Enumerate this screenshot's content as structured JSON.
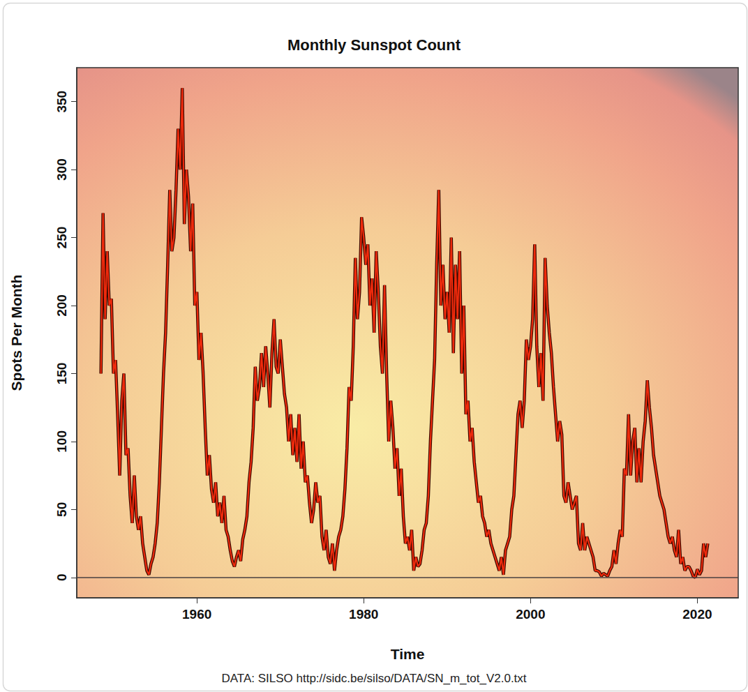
{
  "chart_data": {
    "type": "line",
    "title": "Monthly Sunspot Count",
    "x_label": "Time",
    "y_label": "Spots Per Month",
    "caption": "DATA: SILSO http://sidc.be/silso/DATA/SN_m_tot_V2.0.txt",
    "color": "#ee2a0c",
    "grid": false,
    "xlim": [
      1945.6,
      2024.9
    ],
    "xticks": [
      1960,
      1980,
      2000,
      2020
    ],
    "ylim": [
      -15,
      375
    ],
    "yticks": [
      0,
      50,
      100,
      150,
      200,
      250,
      300,
      350
    ],
    "x": [
      1948.5,
      1948.75,
      1949,
      1949.25,
      1949.5,
      1949.75,
      1950,
      1950.25,
      1950.5,
      1950.75,
      1951,
      1951.25,
      1951.5,
      1951.75,
      1952,
      1952.25,
      1952.5,
      1952.75,
      1953,
      1953.25,
      1953.5,
      1953.75,
      1954,
      1954.25,
      1954.5,
      1954.75,
      1955,
      1955.25,
      1955.5,
      1955.75,
      1956,
      1956.25,
      1956.5,
      1956.75,
      1957,
      1957.25,
      1957.5,
      1957.75,
      1958,
      1958.25,
      1958.5,
      1958.75,
      1959,
      1959.25,
      1959.5,
      1959.75,
      1960,
      1960.25,
      1960.5,
      1960.75,
      1961,
      1961.25,
      1961.5,
      1961.75,
      1962,
      1962.25,
      1962.5,
      1962.75,
      1963,
      1963.25,
      1963.5,
      1963.75,
      1964,
      1964.25,
      1964.5,
      1964.75,
      1965,
      1965.25,
      1965.5,
      1965.75,
      1966,
      1966.25,
      1966.5,
      1966.75,
      1967,
      1967.25,
      1967.5,
      1967.75,
      1968,
      1968.25,
      1968.5,
      1968.75,
      1969,
      1969.25,
      1969.5,
      1969.75,
      1970,
      1970.25,
      1970.5,
      1970.75,
      1971,
      1971.25,
      1971.5,
      1971.75,
      1972,
      1972.25,
      1972.5,
      1972.75,
      1973,
      1973.25,
      1973.5,
      1973.75,
      1974,
      1974.25,
      1974.5,
      1974.75,
      1975,
      1975.25,
      1975.5,
      1975.75,
      1976,
      1976.25,
      1976.5,
      1976.75,
      1977,
      1977.25,
      1977.5,
      1977.75,
      1978,
      1978.25,
      1978.5,
      1978.75,
      1979,
      1979.25,
      1979.5,
      1979.75,
      1980,
      1980.25,
      1980.5,
      1980.75,
      1981,
      1981.25,
      1981.5,
      1981.75,
      1982,
      1982.25,
      1982.5,
      1982.75,
      1983,
      1983.25,
      1983.5,
      1983.75,
      1984,
      1984.25,
      1984.5,
      1984.75,
      1985,
      1985.25,
      1985.5,
      1985.75,
      1986,
      1986.25,
      1986.5,
      1986.75,
      1987,
      1987.25,
      1987.5,
      1987.75,
      1988,
      1988.25,
      1988.5,
      1988.75,
      1989,
      1989.25,
      1989.5,
      1989.75,
      1990,
      1990.25,
      1990.5,
      1990.75,
      1991,
      1991.25,
      1991.5,
      1991.75,
      1992,
      1992.25,
      1992.5,
      1992.75,
      1993,
      1993.25,
      1993.5,
      1993.75,
      1994,
      1994.25,
      1994.5,
      1994.75,
      1995,
      1995.25,
      1995.5,
      1995.75,
      1996,
      1996.25,
      1996.5,
      1996.75,
      1997,
      1997.25,
      1997.5,
      1997.75,
      1998,
      1998.25,
      1998.5,
      1998.75,
      1999,
      1999.25,
      1999.5,
      1999.75,
      2000,
      2000.25,
      2000.5,
      2000.75,
      2001,
      2001.25,
      2001.5,
      2001.75,
      2002,
      2002.25,
      2002.5,
      2002.75,
      2003,
      2003.25,
      2003.5,
      2003.75,
      2004,
      2004.25,
      2004.5,
      2004.75,
      2005,
      2005.25,
      2005.5,
      2005.75,
      2006,
      2006.25,
      2006.5,
      2006.75,
      2007,
      2007.25,
      2007.5,
      2007.75,
      2008,
      2008.25,
      2008.5,
      2008.75,
      2009,
      2009.25,
      2009.5,
      2009.75,
      2010,
      2010.25,
      2010.5,
      2010.75,
      2011,
      2011.25,
      2011.5,
      2011.75,
      2012,
      2012.25,
      2012.5,
      2012.75,
      2013,
      2013.25,
      2013.5,
      2013.75,
      2014,
      2014.25,
      2014.5,
      2014.75,
      2015,
      2015.25,
      2015.5,
      2015.75,
      2016,
      2016.25,
      2016.5,
      2016.75,
      2017,
      2017.25,
      2017.5,
      2017.75,
      2018,
      2018.25,
      2018.5,
      2018.75,
      2019,
      2019.25,
      2019.5,
      2019.75,
      2020,
      2020.25,
      2020.5,
      2020.75,
      2021,
      2021.25
    ],
    "values": [
      150,
      268,
      190,
      240,
      200,
      205,
      150,
      160,
      120,
      75,
      130,
      150,
      90,
      95,
      60,
      40,
      75,
      45,
      35,
      45,
      25,
      15,
      5,
      2,
      10,
      15,
      25,
      40,
      70,
      110,
      150,
      180,
      230,
      285,
      240,
      250,
      285,
      330,
      300,
      360,
      260,
      300,
      280,
      240,
      275,
      200,
      210,
      160,
      180,
      150,
      110,
      75,
      90,
      65,
      55,
      70,
      45,
      55,
      40,
      60,
      35,
      30,
      20,
      12,
      8,
      15,
      20,
      12,
      28,
      35,
      45,
      70,
      85,
      110,
      155,
      130,
      140,
      165,
      140,
      170,
      150,
      125,
      165,
      190,
      155,
      150,
      175,
      155,
      135,
      125,
      100,
      120,
      90,
      110,
      85,
      120,
      80,
      100,
      70,
      75,
      55,
      40,
      50,
      70,
      55,
      60,
      30,
      20,
      35,
      15,
      10,
      25,
      5,
      20,
      30,
      35,
      45,
      65,
      95,
      140,
      130,
      170,
      235,
      190,
      210,
      265,
      250,
      230,
      245,
      200,
      220,
      180,
      240,
      210,
      170,
      150,
      215,
      150,
      100,
      130,
      110,
      80,
      95,
      60,
      80,
      45,
      25,
      30,
      20,
      35,
      5,
      15,
      8,
      10,
      20,
      35,
      40,
      60,
      100,
      130,
      160,
      230,
      285,
      200,
      230,
      190,
      210,
      180,
      250,
      165,
      230,
      190,
      240,
      150,
      200,
      120,
      130,
      100,
      110,
      85,
      70,
      55,
      60,
      45,
      40,
      30,
      35,
      25,
      20,
      15,
      10,
      5,
      15,
      2,
      20,
      25,
      30,
      50,
      60,
      90,
      120,
      130,
      110,
      130,
      175,
      160,
      170,
      190,
      245,
      170,
      140,
      165,
      130,
      235,
      200,
      180,
      165,
      140,
      120,
      100,
      115,
      105,
      60,
      55,
      70,
      60,
      50,
      55,
      60,
      25,
      20,
      40,
      20,
      30,
      25,
      20,
      15,
      5,
      5,
      4,
      1,
      3,
      2,
      1,
      5,
      8,
      20,
      10,
      25,
      35,
      30,
      80,
      75,
      120,
      75,
      100,
      110,
      70,
      95,
      70,
      100,
      115,
      145,
      125,
      110,
      90,
      80,
      70,
      60,
      55,
      50,
      40,
      30,
      25,
      30,
      20,
      15,
      35,
      10,
      15,
      5,
      8,
      8,
      5,
      1,
      0,
      6,
      2,
      5,
      25,
      15,
      25
    ]
  }
}
